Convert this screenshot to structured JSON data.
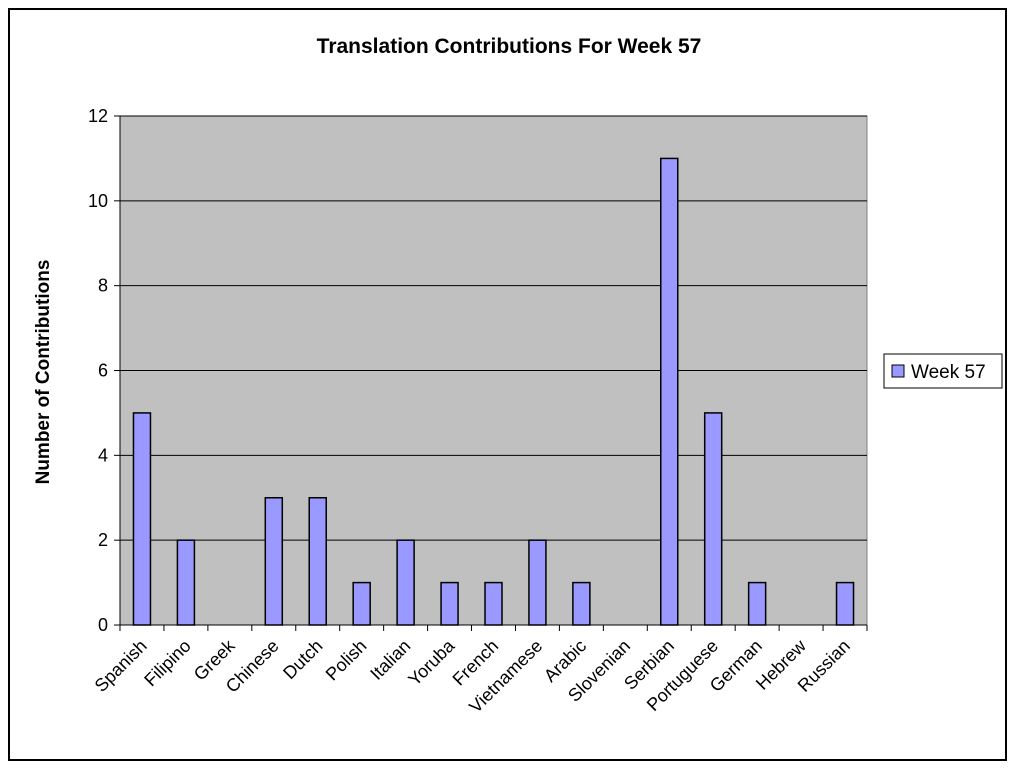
{
  "chart_data": {
    "type": "bar",
    "title": "Translation Contributions For Week 57",
    "xlabel": "",
    "ylabel": "Number of Contributions",
    "ylim": [
      0,
      12
    ],
    "yticks": [
      0,
      2,
      4,
      6,
      8,
      10,
      12
    ],
    "grid": true,
    "legend": "right",
    "categories": [
      "Spanish",
      "Filipino",
      "Greek",
      "Chinese",
      "Dutch",
      "Polish",
      "Italian",
      "Yoruba",
      "French",
      "Vietnamese",
      "Arabic",
      "Slovenian",
      "Serbian",
      "Portuguese",
      "German",
      "Hebrew",
      "Russian"
    ],
    "series": [
      {
        "name": "Week 57",
        "color": "#9999ff",
        "values": [
          5,
          2,
          0,
          3,
          3,
          1,
          2,
          1,
          1,
          2,
          1,
          0,
          11,
          5,
          1,
          0,
          1
        ]
      }
    ],
    "plot_background": "#c0c0c0"
  }
}
